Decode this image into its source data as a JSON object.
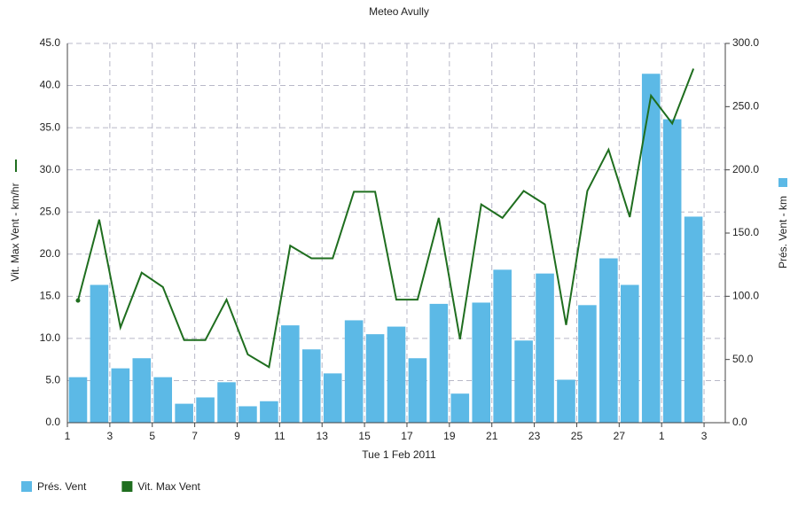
{
  "chart_data": {
    "type": "bar-line",
    "title": "Meteo  Avully",
    "x_label": "Tue 1 Feb 2011",
    "y_label": "Vit. Max Vent - km/hr",
    "y2_label": "Prés. Vent - km",
    "x": [
      1.5,
      2.5,
      3.5,
      4.5,
      5.5,
      6.5,
      7.5,
      8.5,
      9.5,
      10.5,
      11.5,
      12.5,
      13.5,
      14.5,
      15.5,
      16.5,
      17.5,
      18.5,
      19.5,
      20.5,
      21.5,
      22.5,
      23.5,
      24.5,
      25.5,
      26.5,
      27.5,
      28.5,
      29.5,
      30.5
    ],
    "xlim": [
      1,
      32
    ],
    "xticks": [
      1,
      3,
      5,
      7,
      9,
      11,
      13,
      15,
      17,
      19,
      21,
      23,
      25,
      27,
      {
        "value": 29,
        "label": "1"
      },
      {
        "value": 31,
        "label": "3"
      }
    ],
    "ylim": [
      0,
      45
    ],
    "yticks": [
      {
        "value": 0,
        "label": "0.0"
      },
      {
        "value": 5,
        "label": "5.0"
      },
      {
        "value": 10,
        "label": "10.0"
      },
      {
        "value": 15,
        "label": "15.0"
      },
      {
        "value": 20,
        "label": "20.0"
      },
      {
        "value": 25,
        "label": "25.0"
      },
      {
        "value": 30,
        "label": "30.0"
      },
      {
        "value": 35,
        "label": "35.0"
      },
      {
        "value": 40,
        "label": "40.0"
      },
      {
        "value": 45,
        "label": "45.0"
      }
    ],
    "y2lim": [
      0,
      300
    ],
    "y2ticks": [
      {
        "value": 0,
        "label": "0.0"
      },
      {
        "value": 50,
        "label": "50.0"
      },
      {
        "value": 100,
        "label": "100.0"
      },
      {
        "value": 150,
        "label": "150.0"
      },
      {
        "value": 200,
        "label": "200.0"
      },
      {
        "value": 250,
        "label": "250.0"
      },
      {
        "value": 300,
        "label": "300.0"
      }
    ],
    "grid": true,
    "series": [
      {
        "name": "Prés. Vent",
        "kind": "bar",
        "axis": "y2",
        "color": "#5cb9e6",
        "values": [
          36,
          109,
          43,
          51,
          36,
          15,
          20,
          32,
          13,
          17,
          77,
          58,
          39,
          81,
          70,
          76,
          51,
          94,
          23,
          95,
          121,
          65,
          118,
          34,
          93,
          130,
          109,
          276,
          240,
          163
        ]
      },
      {
        "name": "Vit. Max Vent",
        "kind": "line",
        "axis": "y",
        "color": "#1f6e1f",
        "values": [
          14.5,
          24.1,
          11.3,
          17.8,
          16.1,
          9.8,
          9.8,
          14.6,
          8.1,
          6.6,
          21.0,
          19.5,
          19.5,
          27.4,
          27.4,
          14.6,
          14.6,
          24.3,
          9.9,
          25.9,
          24.3,
          27.5,
          25.9,
          11.6,
          27.5,
          32.4,
          24.4,
          38.8,
          35.5,
          42.0
        ]
      }
    ]
  }
}
